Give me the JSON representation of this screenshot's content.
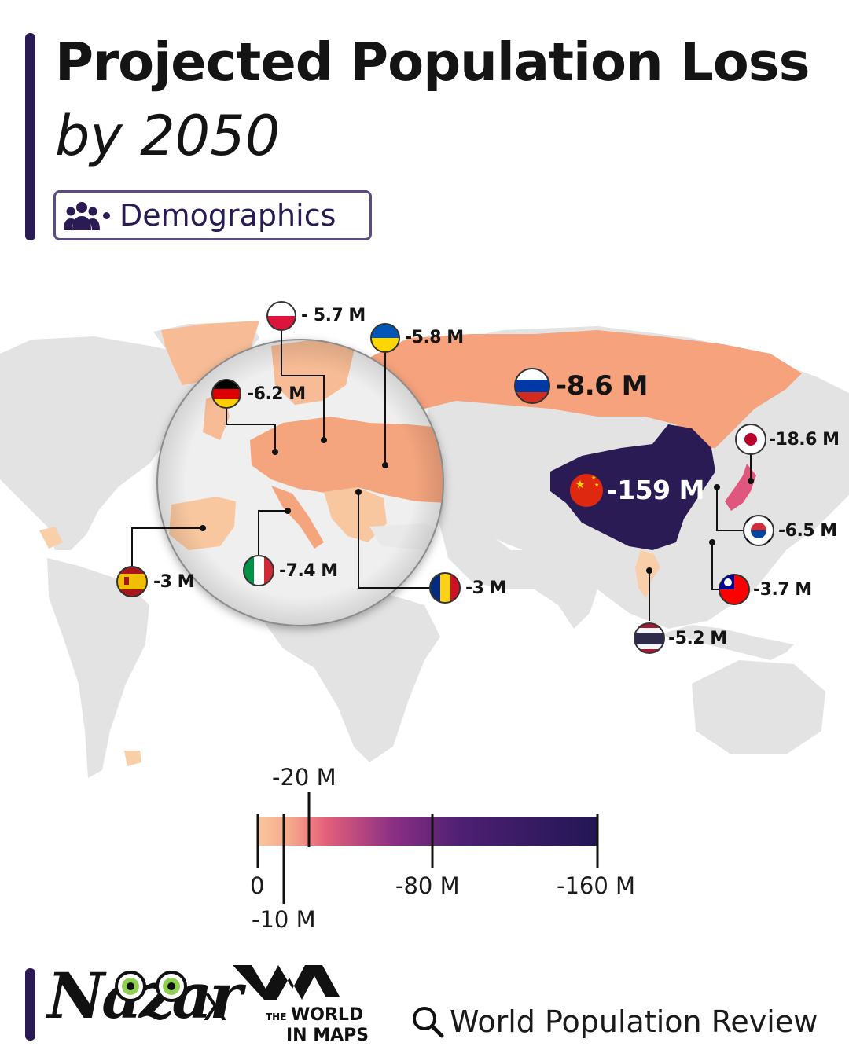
{
  "header": {
    "title": "Projected Population Loss",
    "subtitle": "by 2050",
    "tag": {
      "icon": "people-group-icon",
      "label": "Demographics"
    }
  },
  "map": {
    "colors": {
      "land": "#e3e3e3",
      "china": "#2b1b55",
      "russia": "#f5a27d",
      "europe_light": "#f8c79f",
      "europe_mid": "#f4a57e",
      "japan": "#e0577d",
      "small_loss": "#f9cfa9"
    },
    "countries": [
      {
        "name": "Poland",
        "flag": "poland-flag-icon",
        "label": "- 5.7 M",
        "loss_millions": 5.7
      },
      {
        "name": "Ukraine",
        "flag": "ukraine-flag-icon",
        "label": "-5.8 M",
        "loss_millions": 5.8
      },
      {
        "name": "Germany",
        "flag": "germany-flag-icon",
        "label": "-6.2 M",
        "loss_millions": 6.2
      },
      {
        "name": "Russia",
        "flag": "russia-flag-icon",
        "label": "-8.6 M",
        "loss_millions": 8.6
      },
      {
        "name": "Japan",
        "flag": "japan-flag-icon",
        "label": "-18.6 M",
        "loss_millions": 18.6
      },
      {
        "name": "China",
        "flag": "china-flag-icon",
        "label": "-159 M",
        "loss_millions": 159
      },
      {
        "name": "South Korea",
        "flag": "south-korea-flag-icon",
        "label": "-6.5 M",
        "loss_millions": 6.5
      },
      {
        "name": "Taiwan",
        "flag": "taiwan-flag-icon",
        "label": "-3.7 M",
        "loss_millions": 3.7
      },
      {
        "name": "Thailand",
        "flag": "thailand-flag-icon",
        "label": "-5.2 M",
        "loss_millions": 5.2
      },
      {
        "name": "Spain",
        "flag": "spain-flag-icon",
        "label": "-3 M",
        "loss_millions": 3
      },
      {
        "name": "Italy",
        "flag": "italy-flag-icon",
        "label": "-7.4 M",
        "loss_millions": 7.4
      },
      {
        "name": "Romania",
        "flag": "romania-flag-icon",
        "label": "-3 M",
        "loss_millions": 3
      }
    ]
  },
  "legend": {
    "stops": [
      "0",
      "-10 M",
      "-20 M",
      "-80 M",
      "-160 M"
    ],
    "gradient": [
      "#f9c79d",
      "#e4607a",
      "#8a2f84",
      "#4d1f72",
      "#221655"
    ]
  },
  "footer": {
    "brand": "Nazar",
    "separator": "X",
    "partner": {
      "the": "THE",
      "line1": "WORLD",
      "line2": "IN MAPS"
    },
    "source": {
      "icon": "search-icon",
      "text": "World Population Review"
    }
  }
}
